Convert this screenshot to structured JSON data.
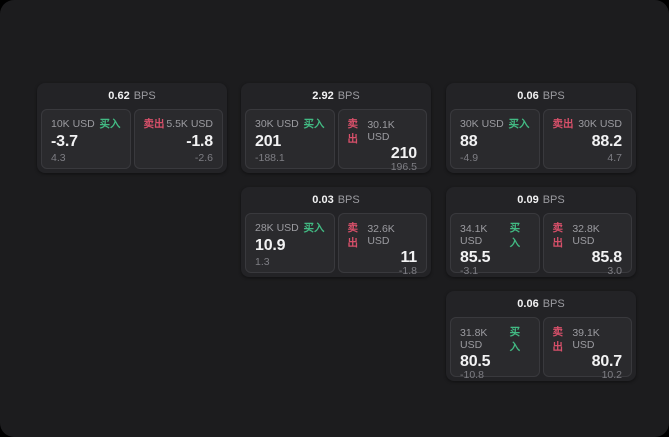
{
  "panel": {
    "page_bg": "#000000",
    "bg": "#1c1c1e"
  },
  "labels": {
    "bps": "BPS",
    "buy": "买入",
    "sell": "卖出"
  },
  "colors": {
    "buy": "#42ba83",
    "sell": "#d8506a",
    "card_bg": "#232326",
    "pane_bg": "#2a2a2d",
    "pane_border": "#39393d",
    "text_primary": "#f2f2f3",
    "text_muted": "#9b9ba0",
    "text_dim": "#7e7e84"
  },
  "cards": [
    {
      "bps": "0.62",
      "row": 0,
      "col": 0,
      "buy": {
        "size": "10K USD",
        "main": "-3.7",
        "sub": "4.3"
      },
      "sell": {
        "size": "5.5K USD",
        "main": "-1.8",
        "sub": "-2.6"
      }
    },
    {
      "bps": "2.92",
      "row": 0,
      "col": 1,
      "buy": {
        "size": "30K USD",
        "main": "201",
        "sub": "-188.1"
      },
      "sell": {
        "size": "30.1K USD",
        "main": "210",
        "sub": "196.5"
      }
    },
    {
      "bps": "0.06",
      "row": 0,
      "col": 2,
      "buy": {
        "size": "30K USD",
        "main": "88",
        "sub": "-4.9"
      },
      "sell": {
        "size": "30K USD",
        "main": "88.2",
        "sub": "4.7"
      }
    },
    {
      "bps": "0.03",
      "row": 1,
      "col": 1,
      "buy": {
        "size": "28K USD",
        "main": "10.9",
        "sub": "1.3"
      },
      "sell": {
        "size": "32.6K USD",
        "main": "11",
        "sub": "-1.8"
      }
    },
    {
      "bps": "0.09",
      "row": 1,
      "col": 2,
      "buy": {
        "size": "34.1K USD",
        "main": "85.5",
        "sub": "-3.1"
      },
      "sell": {
        "size": "32.8K USD",
        "main": "85.8",
        "sub": "3.0"
      }
    },
    {
      "bps": "0.06",
      "row": 2,
      "col": 2,
      "buy": {
        "size": "31.8K USD",
        "main": "80.5",
        "sub": "-10.8"
      },
      "sell": {
        "size": "39.1K USD",
        "main": "80.7",
        "sub": "10.2"
      }
    }
  ]
}
